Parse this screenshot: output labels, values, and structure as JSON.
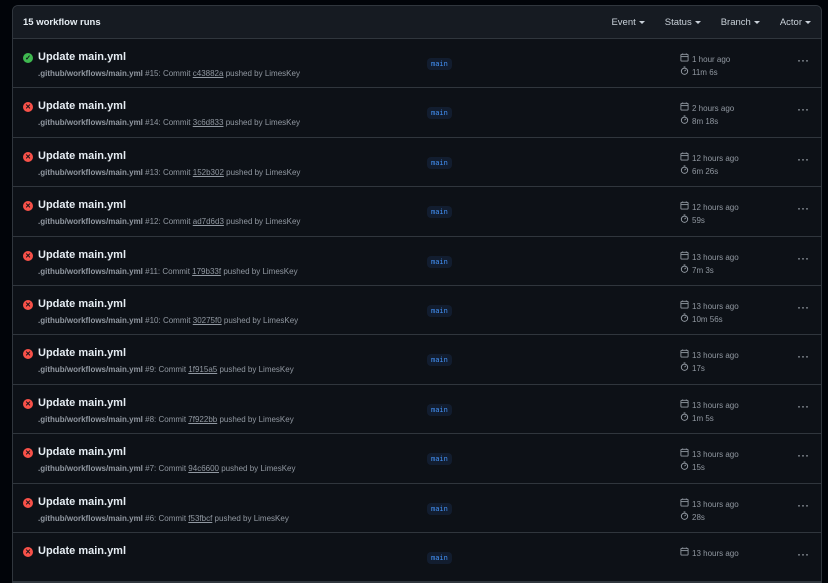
{
  "header": {
    "count": "15 workflow runs",
    "filters": [
      "Event",
      "Status",
      "Branch",
      "Actor"
    ]
  },
  "colors": {
    "success": "#3fb950",
    "failure": "#f85149",
    "branch": "#4493f8"
  },
  "runs": [
    {
      "status": "success",
      "title": "Update main.yml",
      "path": ".github/workflows/main.yml",
      "num": "#15",
      "commit_label": "Commit",
      "sha": "c43882a",
      "by": "pushed by LimesKey",
      "branch": "main",
      "when": "1 hour ago",
      "duration": "11m 6s"
    },
    {
      "status": "failure",
      "title": "Update main.yml",
      "path": ".github/workflows/main.yml",
      "num": "#14",
      "commit_label": "Commit",
      "sha": "3c6d833",
      "by": "pushed by LimesKey",
      "branch": "main",
      "when": "2 hours ago",
      "duration": "8m 18s"
    },
    {
      "status": "failure",
      "title": "Update main.yml",
      "path": ".github/workflows/main.yml",
      "num": "#13",
      "commit_label": "Commit",
      "sha": "152b302",
      "by": "pushed by LimesKey",
      "branch": "main",
      "when": "12 hours ago",
      "duration": "6m 26s"
    },
    {
      "status": "failure",
      "title": "Update main.yml",
      "path": ".github/workflows/main.yml",
      "num": "#12",
      "commit_label": "Commit",
      "sha": "ad7d6d3",
      "by": "pushed by LimesKey",
      "branch": "main",
      "when": "12 hours ago",
      "duration": "59s"
    },
    {
      "status": "failure",
      "title": "Update main.yml",
      "path": ".github/workflows/main.yml",
      "num": "#11",
      "commit_label": "Commit",
      "sha": "179b33f",
      "by": "pushed by LimesKey",
      "branch": "main",
      "when": "13 hours ago",
      "duration": "7m 3s"
    },
    {
      "status": "failure",
      "title": "Update main.yml",
      "path": ".github/workflows/main.yml",
      "num": "#10",
      "commit_label": "Commit",
      "sha": "30275f0",
      "by": "pushed by LimesKey",
      "branch": "main",
      "when": "13 hours ago",
      "duration": "10m 56s"
    },
    {
      "status": "failure",
      "title": "Update main.yml",
      "path": ".github/workflows/main.yml",
      "num": "#9",
      "commit_label": "Commit",
      "sha": "1f915a5",
      "by": "pushed by LimesKey",
      "branch": "main",
      "when": "13 hours ago",
      "duration": "17s"
    },
    {
      "status": "failure",
      "title": "Update main.yml",
      "path": ".github/workflows/main.yml",
      "num": "#8",
      "commit_label": "Commit",
      "sha": "7f922bb",
      "by": "pushed by LimesKey",
      "branch": "main",
      "when": "13 hours ago",
      "duration": "1m 5s"
    },
    {
      "status": "failure",
      "title": "Update main.yml",
      "path": ".github/workflows/main.yml",
      "num": "#7",
      "commit_label": "Commit",
      "sha": "94c6600",
      "by": "pushed by LimesKey",
      "branch": "main",
      "when": "13 hours ago",
      "duration": "15s"
    },
    {
      "status": "failure",
      "title": "Update main.yml",
      "path": ".github/workflows/main.yml",
      "num": "#6",
      "commit_label": "Commit",
      "sha": "f53fbcf",
      "by": "pushed by LimesKey",
      "branch": "main",
      "when": "13 hours ago",
      "duration": "28s"
    },
    {
      "status": "failure",
      "title": "Update main.yml",
      "branch": "main",
      "when": "13 hours ago"
    }
  ]
}
